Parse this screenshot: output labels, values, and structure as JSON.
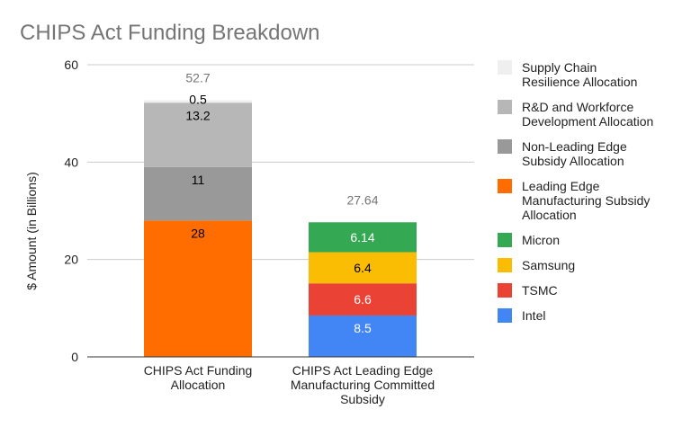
{
  "chart_data": {
    "type": "bar",
    "stacked": true,
    "title": "CHIPS Act Funding Breakdown",
    "xlabel": "",
    "ylabel": "$ Amount (in Billions)",
    "ylim": [
      0,
      60
    ],
    "yticks": [
      "0",
      "20",
      "40",
      "60"
    ],
    "grid": true,
    "legend_position": "right",
    "categories": [
      "CHIPS Act Funding Allocation",
      "CHIPS Act Leading Edge Manufacturing Committed Subsidy"
    ],
    "category_lines": [
      [
        "CHIPS Act Funding",
        "Allocation"
      ],
      [
        "CHIPS Act Leading Edge",
        "Manufacturing Committed",
        "Subsidy"
      ]
    ],
    "totals": [
      "52.7",
      "27.64"
    ],
    "series": [
      {
        "name": "Intel",
        "legend_lines": [
          "Intel"
        ],
        "color": "#4285f4",
        "label_color": "#ffffff",
        "values": [
          null,
          8.5
        ],
        "labels": [
          "",
          "8.5"
        ]
      },
      {
        "name": "TSMC",
        "legend_lines": [
          "TSMC"
        ],
        "color": "#ea4335",
        "label_color": "#ffffff",
        "values": [
          null,
          6.6
        ],
        "labels": [
          "",
          "6.6"
        ]
      },
      {
        "name": "Samsung",
        "legend_lines": [
          "Samsung"
        ],
        "color": "#fbbc04",
        "label_color": "#000000",
        "values": [
          null,
          6.4
        ],
        "labels": [
          "",
          "6.4"
        ]
      },
      {
        "name": "Micron",
        "legend_lines": [
          "Micron"
        ],
        "color": "#34a853",
        "label_color": "#ffffff",
        "values": [
          null,
          6.14
        ],
        "labels": [
          "",
          "6.14"
        ]
      },
      {
        "name": "Leading Edge Manufacturing Subsidy Allocation",
        "legend_lines": [
          "Leading Edge",
          "Manufacturing Subsidy",
          "Allocation"
        ],
        "color": "#ff6d01",
        "label_color": "#000000",
        "values": [
          28,
          null
        ],
        "labels": [
          "28",
          ""
        ]
      },
      {
        "name": "Non-Leading Edge Subsidy Allocation",
        "legend_lines": [
          "Non-Leading Edge",
          "Subsidy Allocation"
        ],
        "color": "#999999",
        "label_color": "#000000",
        "values": [
          11,
          null
        ],
        "labels": [
          "11",
          ""
        ]
      },
      {
        "name": "R&D and Workforce Development Allocation",
        "legend_lines": [
          "R&D and Workforce",
          "Development Allocation"
        ],
        "color": "#b7b7b7",
        "label_color": "#000000",
        "values": [
          13.2,
          null
        ],
        "labels": [
          "13.2",
          ""
        ]
      },
      {
        "name": "Supply Chain Resilience Allocation",
        "legend_lines": [
          "Supply Chain",
          "Resilience Allocation"
        ],
        "color": "#efefef",
        "label_color": "#000000",
        "values": [
          0.5,
          null
        ],
        "labels": [
          "0.5",
          ""
        ]
      }
    ],
    "legend_order": [
      "Supply Chain Resilience Allocation",
      "R&D and Workforce Development Allocation",
      "Non-Leading Edge Subsidy Allocation",
      "Leading Edge Manufacturing Subsidy Allocation",
      "Micron",
      "Samsung",
      "TSMC",
      "Intel"
    ]
  }
}
